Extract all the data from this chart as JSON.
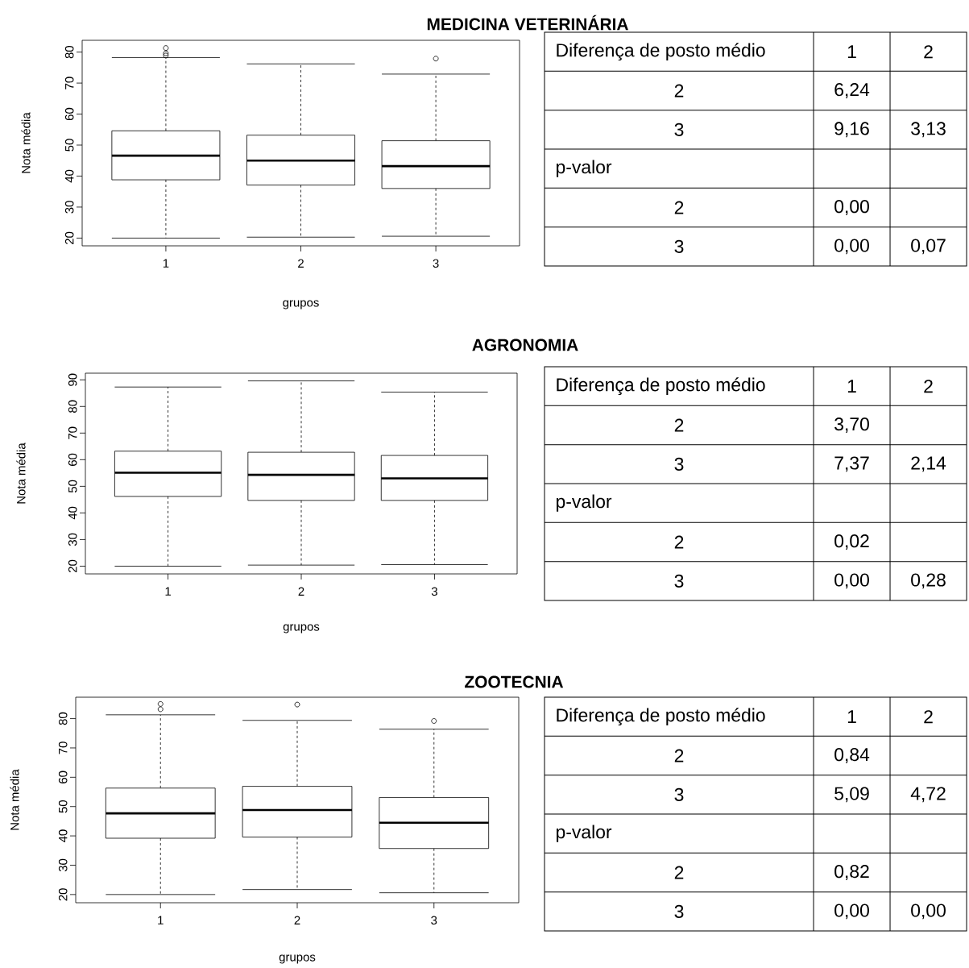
{
  "chart_data": [
    {
      "type": "box",
      "title": "MEDICINA VETERINÁRIA",
      "xlabel": "grupos",
      "ylabel": "Nota média",
      "categories": [
        "1",
        "2",
        "3"
      ],
      "ylim": [
        17.5,
        83.8
      ],
      "yticks": [
        20,
        30,
        40,
        50,
        60,
        70,
        80
      ],
      "boxes": [
        {
          "low": 20.0,
          "q1": 38.8,
          "median": 46.6,
          "q3": 54.6,
          "high": 78.2,
          "outliers": [
            81.3,
            79.6,
            78.9
          ]
        },
        {
          "low": 20.3,
          "q1": 37.1,
          "median": 45.0,
          "q3": 53.2,
          "high": 76.2
        },
        {
          "low": 20.6,
          "q1": 36.0,
          "median": 43.2,
          "q3": 51.4,
          "high": 72.9,
          "outliers": [
            77.9
          ]
        }
      ]
    },
    {
      "type": "other",
      "ylabel": "Diferença de posto médio",
      "categories": [
        "1",
        "2"
      ],
      "y_categories": [
        "2",
        "3",
        "p-valor",
        "2",
        "3"
      ],
      "cell_labels": [
        [
          "6,24",
          null
        ],
        [
          "9,16",
          "3,13"
        ],
        [
          null,
          null
        ],
        [
          "0,00",
          null
        ],
        [
          "0,00",
          "0,07"
        ]
      ]
    },
    {
      "type": "box",
      "title": "AGRONOMIA",
      "xlabel": "grupos",
      "ylabel": "Nota média",
      "categories": [
        "1",
        "2",
        "3"
      ],
      "ylim": [
        17.1,
        92.5
      ],
      "yticks": [
        20,
        30,
        40,
        50,
        60,
        70,
        80,
        90
      ],
      "boxes": [
        {
          "low": 20.0,
          "q1": 46.2,
          "median": 55.1,
          "q3": 63.2,
          "high": 87.3
        },
        {
          "low": 20.4,
          "q1": 44.7,
          "median": 54.3,
          "q3": 62.8,
          "high": 89.6
        },
        {
          "low": 20.6,
          "q1": 44.7,
          "median": 53.0,
          "q3": 61.6,
          "high": 85.4
        }
      ]
    },
    {
      "type": "other",
      "ylabel": "Diferença de posto médio",
      "categories": [
        "1",
        "2"
      ],
      "y_categories": [
        "2",
        "3",
        "p-valor",
        "2",
        "3"
      ],
      "cell_labels": [
        [
          "3,70",
          null
        ],
        [
          "7,37",
          "2,14"
        ],
        [
          null,
          null
        ],
        [
          "0,02",
          null
        ],
        [
          "0,00",
          "0,28"
        ]
      ]
    },
    {
      "type": "box",
      "title": "ZOOTECNIA",
      "xlabel": "grupos",
      "ylabel": "Nota média",
      "categories": [
        "1",
        "2",
        "3"
      ],
      "ylim": [
        17.2,
        87.3
      ],
      "yticks": [
        20,
        30,
        40,
        50,
        60,
        70,
        80
      ],
      "boxes": [
        {
          "low": 20.0,
          "q1": 39.2,
          "median": 47.7,
          "q3": 56.3,
          "high": 81.3,
          "outliers": [
            85.0,
            83.2
          ]
        },
        {
          "low": 21.7,
          "q1": 39.6,
          "median": 48.8,
          "q3": 56.9,
          "high": 79.4,
          "outliers": [
            84.8
          ]
        },
        {
          "low": 20.6,
          "q1": 35.7,
          "median": 44.5,
          "q3": 53.1,
          "high": 76.4,
          "outliers": [
            79.2
          ]
        }
      ]
    },
    {
      "type": "other",
      "ylabel": "Diferença de posto médio",
      "categories": [
        "1",
        "2"
      ],
      "y_categories": [
        "2",
        "3",
        "p-valor",
        "2",
        "3"
      ],
      "cell_labels": [
        [
          "0,84",
          null
        ],
        [
          "5,09",
          "4,72"
        ],
        [
          null,
          null
        ],
        [
          "0,82",
          null
        ],
        [
          "0,00",
          "0,00"
        ]
      ]
    }
  ]
}
